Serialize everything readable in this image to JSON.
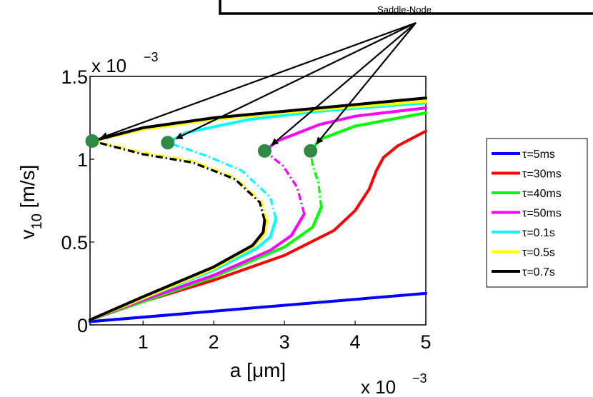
{
  "chart_data": {
    "type": "line",
    "xlabel_main": "a [",
    "xlabel_unit": "μm]",
    "ylabel_main": "v",
    "ylabel_sub": "10",
    "ylabel_unit": " [m/s]",
    "x_multiplier": "x 10",
    "y_multiplier": "x 10",
    "multiplier_exponent": "−3",
    "xlim": [
      0.00025,
      0.005
    ],
    "ylim": [
      0,
      0.0015
    ],
    "x_ticks": [
      {
        "value": 0.001,
        "label": "1"
      },
      {
        "value": 0.002,
        "label": "2"
      },
      {
        "value": 0.003,
        "label": "3"
      },
      {
        "value": 0.004,
        "label": "4"
      },
      {
        "value": 0.005,
        "label": "5"
      }
    ],
    "y_ticks": [
      {
        "value": 0,
        "label": "0"
      },
      {
        "value": 0.0005,
        "label": "0.5"
      },
      {
        "value": 0.001,
        "label": "1"
      },
      {
        "value": 0.0015,
        "label": "1.5"
      }
    ],
    "annotation": "Saddle-Node",
    "legend_position": "right",
    "series": [
      {
        "name": "τ=5ms",
        "color": "#0000ff",
        "stable": [
          [
            0.00025,
            2e-05
          ],
          [
            0.005,
            0.00019
          ]
        ]
      },
      {
        "name": "τ=30ms",
        "color": "#ff0000",
        "stable": [
          [
            0.00025,
            3e-05
          ],
          [
            0.001,
            0.00014
          ],
          [
            0.002,
            0.00027
          ],
          [
            0.003,
            0.00042
          ],
          [
            0.0037,
            0.00057
          ],
          [
            0.004,
            0.00069
          ],
          [
            0.0042,
            0.00082
          ],
          [
            0.0043,
            0.00093
          ],
          [
            0.0044,
            0.00101
          ],
          [
            0.0046,
            0.00108
          ],
          [
            0.005,
            0.00117
          ]
        ]
      },
      {
        "name": "τ=40ms",
        "color": "#00ff00",
        "stable": [
          [
            0.00025,
            3e-05
          ],
          [
            0.001,
            0.00014
          ],
          [
            0.002,
            0.00029
          ],
          [
            0.003,
            0.00047
          ],
          [
            0.0034,
            0.00059
          ],
          [
            0.00352,
            0.00071
          ]
        ],
        "unstable": [
          [
            0.00352,
            0.00071
          ],
          [
            0.00348,
            0.00086
          ],
          [
            0.0034,
            0.00096
          ],
          [
            0.00337,
            0.00105
          ]
        ],
        "upper": [
          [
            0.00337,
            0.00105
          ],
          [
            0.0035,
            0.00112
          ],
          [
            0.004,
            0.0012
          ],
          [
            0.005,
            0.00128
          ]
        ],
        "fold": [
          0.00337,
          0.00105
        ]
      },
      {
        "name": "τ=50ms",
        "color": "#ff00ff",
        "stable": [
          [
            0.00025,
            3e-05
          ],
          [
            0.001,
            0.00015
          ],
          [
            0.002,
            0.0003
          ],
          [
            0.0028,
            0.00045
          ],
          [
            0.0031,
            0.00054
          ],
          [
            0.00328,
            0.00067
          ]
        ],
        "unstable": [
          [
            0.00328,
            0.00067
          ],
          [
            0.00318,
            0.00083
          ],
          [
            0.00298,
            0.00096
          ],
          [
            0.00272,
            0.00105
          ]
        ],
        "upper": [
          [
            0.00272,
            0.00105
          ],
          [
            0.0029,
            0.00111
          ],
          [
            0.0035,
            0.00121
          ],
          [
            0.004,
            0.00126
          ],
          [
            0.005,
            0.00131
          ]
        ],
        "fold": [
          0.00272,
          0.00105
        ]
      },
      {
        "name": "τ=0.1s",
        "color": "#00ffff",
        "stable": [
          [
            0.00025,
            3e-05
          ],
          [
            0.001,
            0.00016
          ],
          [
            0.002,
            0.00033
          ],
          [
            0.0026,
            0.00046
          ],
          [
            0.0028,
            0.00053
          ],
          [
            0.00288,
            0.00064
          ]
        ],
        "unstable": [
          [
            0.00288,
            0.00064
          ],
          [
            0.0028,
            0.00077
          ],
          [
            0.0024,
            0.00093
          ],
          [
            0.0019,
            0.00102
          ],
          [
            0.00135,
            0.0011
          ]
        ],
        "upper": [
          [
            0.00135,
            0.0011
          ],
          [
            0.0016,
            0.00116
          ],
          [
            0.0025,
            0.00124
          ],
          [
            0.0035,
            0.00129
          ],
          [
            0.005,
            0.00134
          ]
        ],
        "fold": [
          0.00135,
          0.0011
        ]
      },
      {
        "name": "τ=0.5s",
        "color": "#ffff00",
        "stable": [
          [
            0.00025,
            3e-05
          ],
          [
            0.001,
            0.00016
          ],
          [
            0.002,
            0.00034
          ],
          [
            0.00255,
            0.00047
          ],
          [
            0.00272,
            0.00055
          ],
          [
            0.00275,
            0.00063
          ]
        ],
        "unstable": [
          [
            0.00275,
            0.00063
          ],
          [
            0.00268,
            0.00074
          ],
          [
            0.0023,
            0.00089
          ],
          [
            0.0017,
            0.00099
          ],
          [
            0.001,
            0.00104
          ],
          [
            0.00028,
            0.00111
          ]
        ],
        "upper": [
          [
            0.00028,
            0.00111
          ],
          [
            0.001,
            0.00118
          ],
          [
            0.002,
            0.00124
          ],
          [
            0.0035,
            0.0013
          ],
          [
            0.005,
            0.00135
          ]
        ],
        "fold": [
          0.00028,
          0.00111
        ]
      },
      {
        "name": "τ=0.7s",
        "color": "#000000",
        "stable": [
          [
            0.00025,
            3e-05
          ],
          [
            0.001,
            0.00017
          ],
          [
            0.002,
            0.00035
          ],
          [
            0.00255,
            0.00048
          ],
          [
            0.0027,
            0.00056
          ],
          [
            0.00272,
            0.00063
          ]
        ],
        "unstable": [
          [
            0.00272,
            0.00063
          ],
          [
            0.00265,
            0.00074
          ],
          [
            0.0023,
            0.00088
          ],
          [
            0.0017,
            0.00098
          ],
          [
            0.001,
            0.00103
          ],
          [
            0.00028,
            0.00111
          ]
        ],
        "upper": [
          [
            0.00028,
            0.00111
          ],
          [
            0.001,
            0.00119
          ],
          [
            0.002,
            0.00125
          ],
          [
            0.0035,
            0.00131
          ],
          [
            0.005,
            0.00137
          ]
        ],
        "fold": [
          0.00028,
          0.00111
        ]
      }
    ],
    "arrow_targets": [
      [
        0.00028,
        0.00111
      ],
      [
        0.00135,
        0.0011
      ],
      [
        0.00272,
        0.00105
      ],
      [
        0.00337,
        0.00105
      ]
    ],
    "marker_color": "#2e8b45"
  }
}
